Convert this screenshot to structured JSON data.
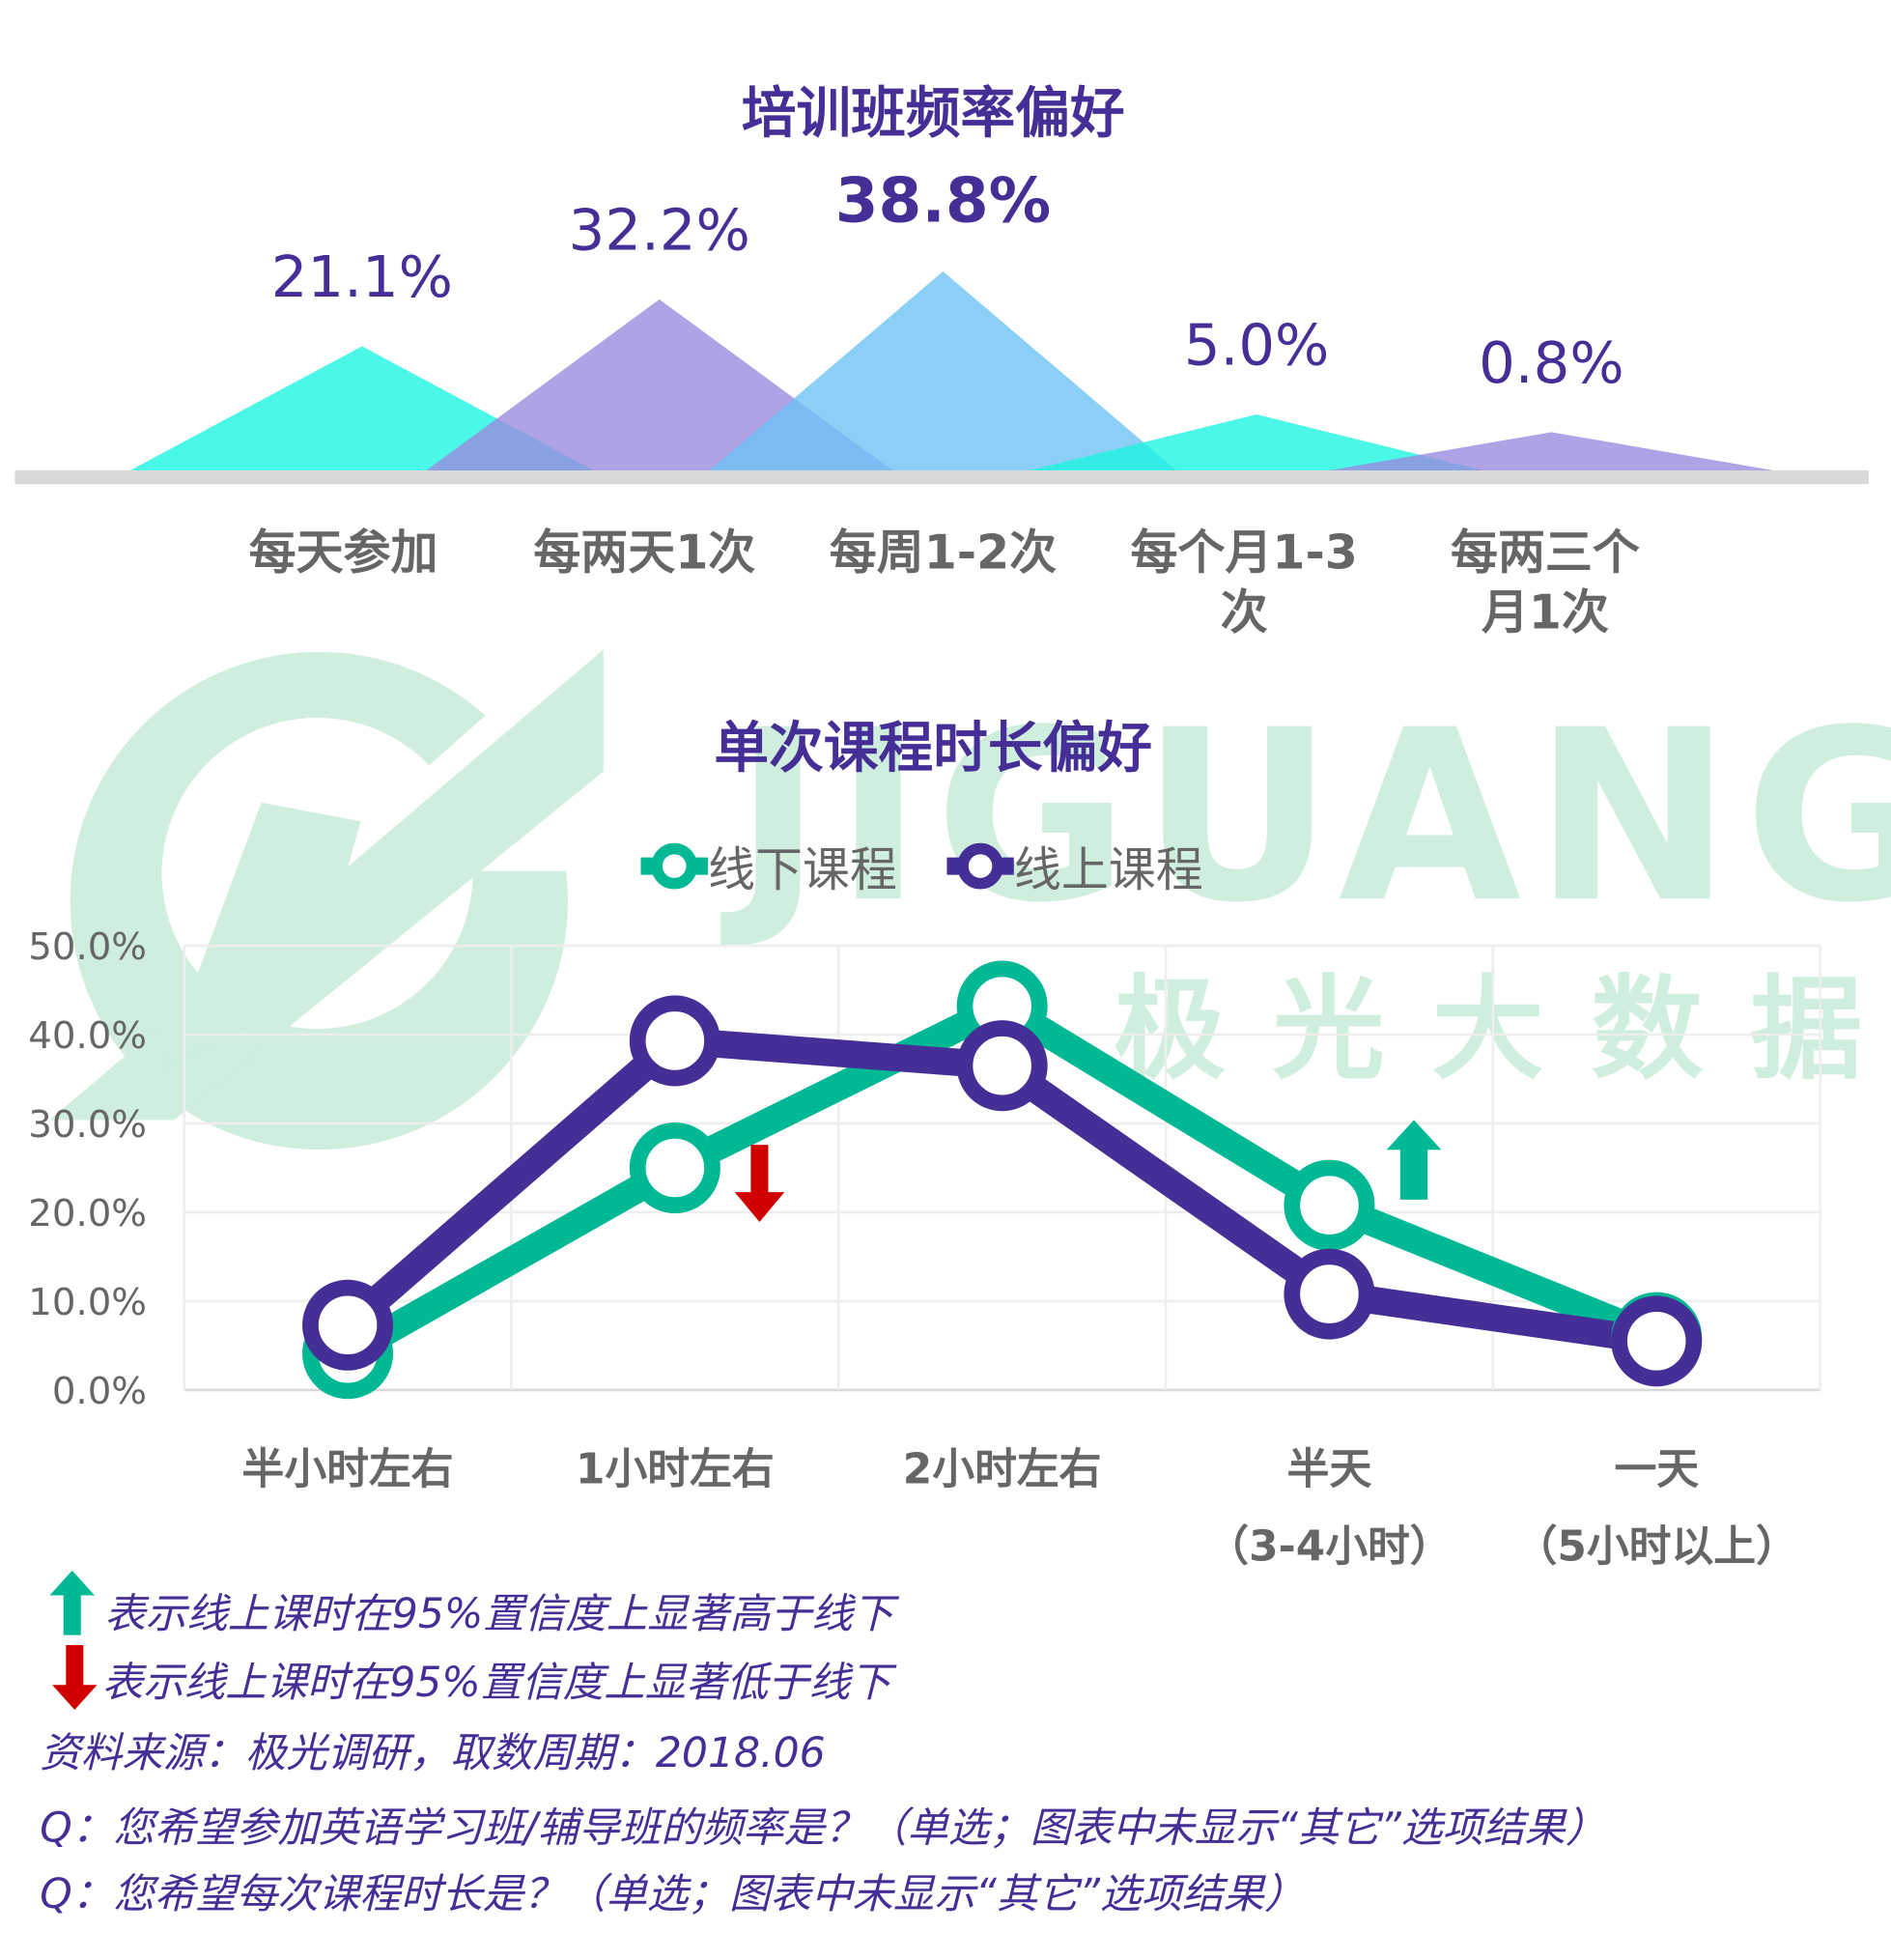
{
  "watermark": {
    "brand": "JIGUANG",
    "brand_cn": "极光大数据"
  },
  "chart_data": [
    {
      "type": "area",
      "title": "培训班频率偏好",
      "categories": [
        "每天参加",
        "每两天1次",
        "每周1-2次",
        "每个月1-3\n次",
        "每两三个\n月1次"
      ],
      "values": [
        21.1,
        32.2,
        38.8,
        5.0,
        0.8
      ],
      "data_labels": [
        "21.1%",
        "32.2%",
        "38.8%",
        "5.0%",
        "0.8%"
      ],
      "colors": [
        "#1ef5e0",
        "#9b8ce0",
        "#6ec3f5",
        "#1ef5e0",
        "#9b8ce0"
      ]
    },
    {
      "type": "line",
      "title": "单次课程时长偏好",
      "categories": [
        "半小时左右",
        "1小时左右",
        "2小时左右",
        "半天\n（3-4小时）",
        "一天\n（5小时以上）"
      ],
      "ylim": [
        0,
        50
      ],
      "yticks": [
        "0.0%",
        "10.0%",
        "20.0%",
        "30.0%",
        "40.0%",
        "50.0%"
      ],
      "grid": true,
      "legend": "top",
      "series": [
        {
          "name": "线下课程",
          "color": "#00b894",
          "values": [
            4.1,
            25.0,
            43.2,
            20.8,
            5.9
          ]
        },
        {
          "name": "线上课程",
          "color": "#452f96",
          "values": [
            7.3,
            39.3,
            36.5,
            10.8,
            5.5
          ]
        }
      ],
      "annotations": [
        {
          "category": "1小时左右",
          "direction": "down",
          "color": "#d00000"
        },
        {
          "category": "半天\n（3-4小时）",
          "direction": "up",
          "color": "#00b894"
        }
      ]
    }
  ],
  "notes": {
    "up": "表示线上课时在95%置信度上显著高于线下",
    "down": "表示线上课时在95%置信度上显著低于线下",
    "source": "资料来源：极光调研，取数周期：2018.06",
    "q1": "Q：您希望参加英语学习班/辅导班的频率是？（单选；图表中未显示“其它”选项结果）",
    "q2": "Q：您希望每次课程时长是？（单选；图表中未显示“其它”选项结果）"
  }
}
